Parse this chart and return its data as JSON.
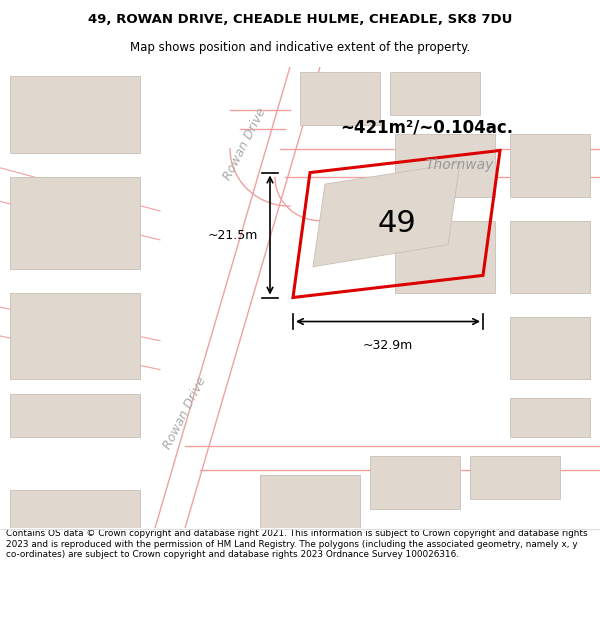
{
  "title_line1": "49, ROWAN DRIVE, CHEADLE HULME, CHEADLE, SK8 7DU",
  "title_line2": "Map shows position and indicative extent of the property.",
  "footer_text": "Contains OS data © Crown copyright and database right 2021. This information is subject to Crown copyright and database rights 2023 and is reproduced with the permission of HM Land Registry. The polygons (including the associated geometry, namely x, y co-ordinates) are subject to Crown copyright and database rights 2023 Ordnance Survey 100026316.",
  "plot_label": "49",
  "area_label": "~421m²/~0.104ac.",
  "dim_width_label": "~32.9m",
  "dim_height_label": "~21.5m",
  "road_label_thornway": "Thornway",
  "road_label_rowan1": "Rowan Drive",
  "road_label_rowan2": "Rowan Drive",
  "plot_color": "#dd0000",
  "building_color": "#e0d8ce",
  "building_edge": "#c8bfb4",
  "road_line_color": "#f0a0a0",
  "background_color": "#f7f4f0",
  "map_bg": "#ffffff",
  "text_color": "#000000",
  "road_text_color": "#aaaaaa"
}
